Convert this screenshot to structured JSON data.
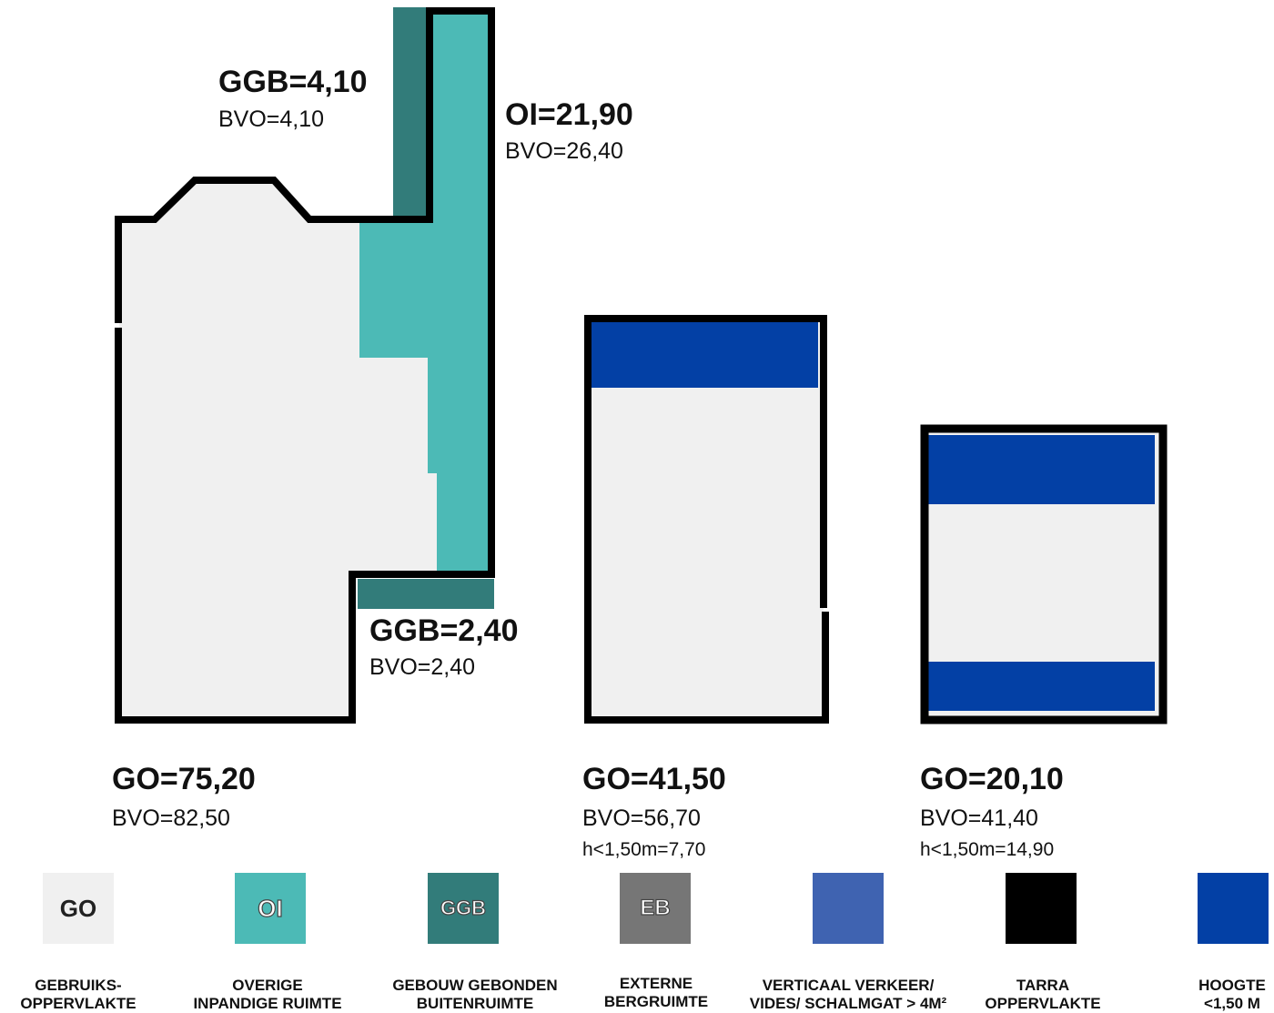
{
  "colors": {
    "go": "#f0f0f0",
    "oi": "#4cbab6",
    "ggb": "#327c7a",
    "eb": "#767676",
    "verticaal": "#3f63b1",
    "tarra": "#000000",
    "hoogte": "#0340a5",
    "wall": "#000000"
  },
  "labels": {
    "ggb_top": {
      "value": "GGB=4,10",
      "bvo": "BVO=4,10"
    },
    "oi": {
      "value": "OI=21,90",
      "bvo": "BVO=26,40"
    },
    "ggb_bottom": {
      "value": "GGB=2,40",
      "bvo": "BVO=2,40"
    },
    "floor1": {
      "value": "GO=75,20",
      "bvo": "BVO=82,50"
    },
    "floor2": {
      "value": "GO=41,50",
      "bvo": "BVO=56,70",
      "low": "h<1,50m=7,70"
    },
    "floor3": {
      "value": "GO=20,10",
      "bvo": "BVO=41,40",
      "low": "h<1,50m=14,90"
    }
  },
  "legend": [
    {
      "code": "GO",
      "line1": "GEBRUIKS-",
      "line2": "OPPERVLAKTE"
    },
    {
      "code": "OI",
      "line1": "OVERIGE",
      "line2": "INPANDIGE RUIMTE"
    },
    {
      "code": "GGB",
      "line1": "GEBOUW GEBONDEN",
      "line2": "BUITENRUIMTE"
    },
    {
      "code": "EB",
      "line1": "EXTERNE",
      "line2": "BERGRUIMTE"
    },
    {
      "code": "",
      "line1": "VERTICAAL VERKEER/",
      "line2": "VIDES/ SCHALMGAT > 4M²"
    },
    {
      "code": "",
      "line1": "TARRA",
      "line2": "OPPERVLAKTE"
    },
    {
      "code": "",
      "line1": "HOOGTE",
      "line2": "<1,50 M"
    }
  ]
}
